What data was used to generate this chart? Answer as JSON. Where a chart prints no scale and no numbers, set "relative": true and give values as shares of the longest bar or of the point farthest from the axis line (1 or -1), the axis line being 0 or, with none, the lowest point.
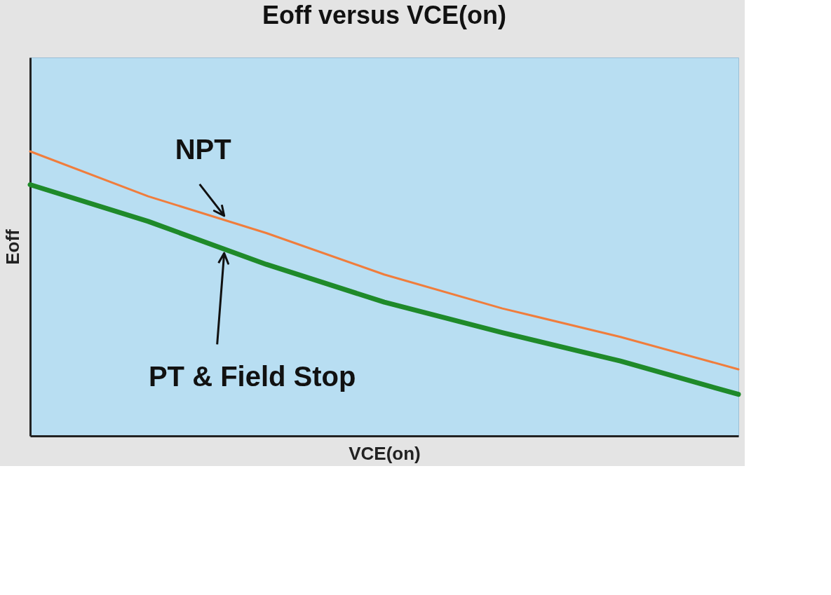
{
  "chart_data": {
    "type": "line",
    "title": "Eoff versus VCE(on)",
    "xlabel": "VCE(on)",
    "ylabel": "Eoff",
    "relative": true,
    "categories": [
      null,
      null,
      null,
      null,
      null,
      null,
      null
    ],
    "series": [
      {
        "name": "NPT",
        "color": "#f07d3c",
        "values": [
          1.0,
          0.842,
          0.713,
          0.567,
          0.448,
          0.348,
          0.234
        ]
      },
      {
        "name": "PT & Field Stop",
        "color": "#1f8a2a",
        "values": [
          0.883,
          0.754,
          0.603,
          0.47,
          0.363,
          0.263,
          0.146
        ]
      }
    ]
  }
}
